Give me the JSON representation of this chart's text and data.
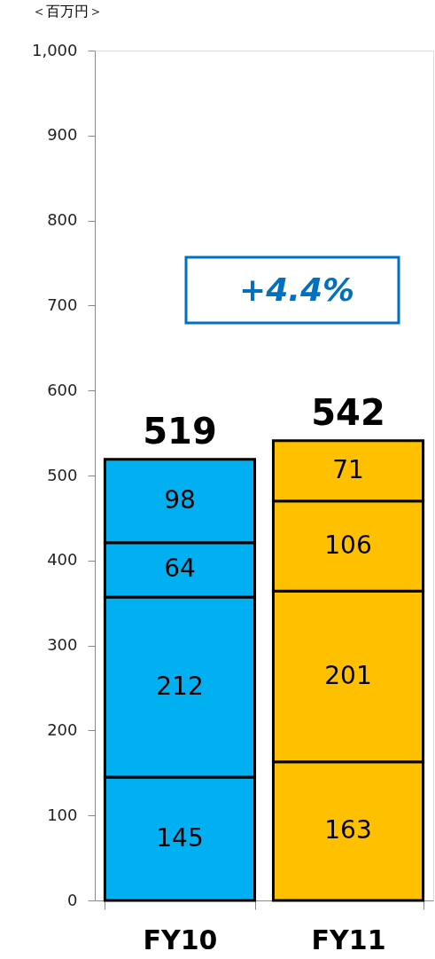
{
  "chart_data": {
    "type": "bar",
    "stacked": true,
    "ylabel": "＜百万円＞",
    "categories": [
      "FY10",
      "FY11"
    ],
    "series": [
      {
        "colors": [
          "#00b0f0",
          "#ffc000"
        ],
        "values": [
          145,
          163
        ]
      },
      {
        "colors": [
          "#00b0f0",
          "#ffc000"
        ],
        "values": [
          212,
          201
        ]
      },
      {
        "colors": [
          "#00b0f0",
          "#ffc000"
        ],
        "values": [
          64,
          106
        ]
      },
      {
        "colors": [
          "#00b0f0",
          "#ffc000"
        ],
        "values": [
          98,
          71
        ]
      }
    ],
    "totals": [
      "519",
      "542"
    ],
    "data_labels": true,
    "annotations": [
      "+4.4%"
    ],
    "ylim": [
      0,
      1000
    ],
    "yticks": [
      0,
      {
        "value": 100,
        "label": "100"
      },
      200,
      300,
      400,
      500,
      600,
      700,
      800,
      900,
      {
        "value": 1000,
        "label": "1,000"
      }
    ],
    "grid": false
  }
}
